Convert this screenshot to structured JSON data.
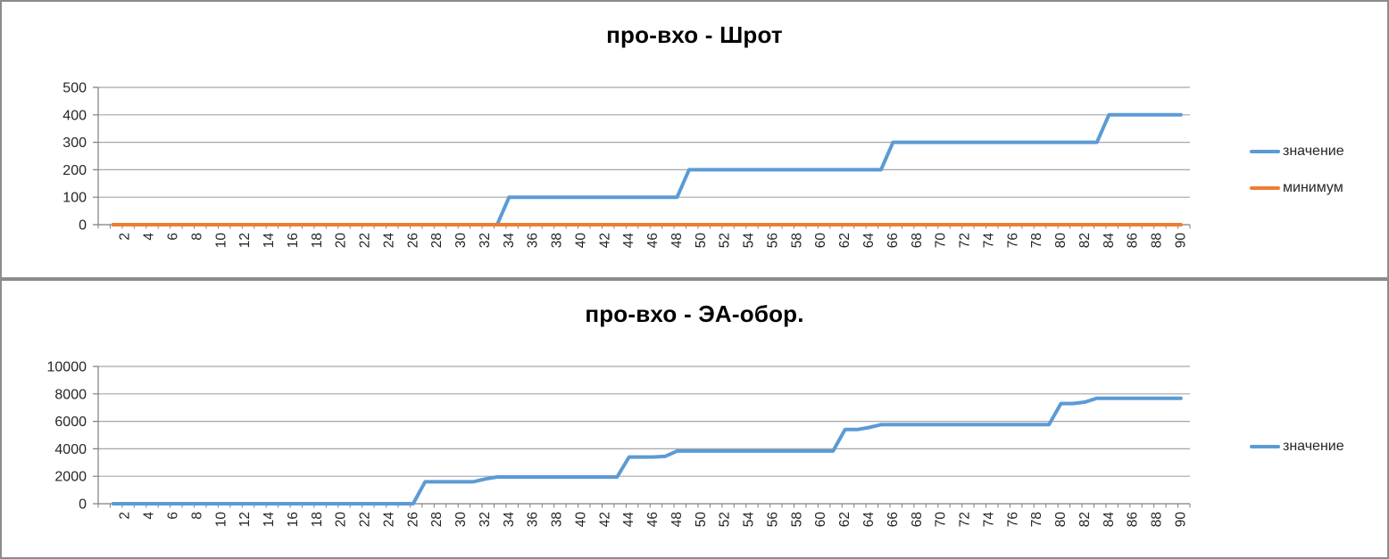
{
  "colors": {
    "series_blue": "#5B9BD5",
    "series_orange": "#ED7D31",
    "gridline": "#A6A6A6",
    "axis": "#7F7F7F",
    "tick": "#7F7F7F",
    "label_text": "#262626",
    "panel_border": "#8C8C8C"
  },
  "chart_data": [
    {
      "type": "line",
      "title": "про-вхо - Шрот",
      "xlabel": "",
      "ylabel": "",
      "ylim": [
        0,
        500
      ],
      "y_ticks": [
        0,
        100,
        200,
        300,
        400,
        500
      ],
      "x_tick_labels": [
        2,
        4,
        6,
        8,
        10,
        12,
        14,
        16,
        18,
        20,
        22,
        24,
        26,
        28,
        30,
        32,
        34,
        36,
        38,
        40,
        42,
        44,
        46,
        48,
        50,
        52,
        54,
        56,
        58,
        60,
        62,
        64,
        66,
        68,
        70,
        72,
        74,
        76,
        78,
        80,
        82,
        84,
        86,
        88,
        90
      ],
      "x_range": [
        1,
        90
      ],
      "grid": true,
      "legend_position": "right",
      "series": [
        {
          "name": "значение",
          "color": "#5B9BD5",
          "values": [
            0,
            0,
            0,
            0,
            0,
            0,
            0,
            0,
            0,
            0,
            0,
            0,
            0,
            0,
            0,
            0,
            0,
            0,
            0,
            0,
            0,
            0,
            0,
            0,
            0,
            0,
            0,
            0,
            0,
            0,
            0,
            0,
            0,
            100,
            100,
            100,
            100,
            100,
            100,
            100,
            100,
            100,
            100,
            100,
            100,
            100,
            100,
            100,
            200,
            200,
            200,
            200,
            200,
            200,
            200,
            200,
            200,
            200,
            200,
            200,
            200,
            200,
            200,
            200,
            200,
            300,
            300,
            300,
            300,
            300,
            300,
            300,
            300,
            300,
            300,
            300,
            300,
            300,
            300,
            300,
            300,
            300,
            300,
            400,
            400,
            400,
            400,
            400,
            400,
            400
          ]
        },
        {
          "name": "минимум",
          "color": "#ED7D31",
          "values": [
            0,
            0,
            0,
            0,
            0,
            0,
            0,
            0,
            0,
            0,
            0,
            0,
            0,
            0,
            0,
            0,
            0,
            0,
            0,
            0,
            0,
            0,
            0,
            0,
            0,
            0,
            0,
            0,
            0,
            0,
            0,
            0,
            0,
            0,
            0,
            0,
            0,
            0,
            0,
            0,
            0,
            0,
            0,
            0,
            0,
            0,
            0,
            0,
            0,
            0,
            0,
            0,
            0,
            0,
            0,
            0,
            0,
            0,
            0,
            0,
            0,
            0,
            0,
            0,
            0,
            0,
            0,
            0,
            0,
            0,
            0,
            0,
            0,
            0,
            0,
            0,
            0,
            0,
            0,
            0,
            0,
            0,
            0,
            0,
            0,
            0,
            0,
            0,
            0,
            0
          ]
        }
      ]
    },
    {
      "type": "line",
      "title": "про-вхо - ЭА-обор.",
      "xlabel": "",
      "ylabel": "",
      "ylim": [
        0,
        10000
      ],
      "y_ticks": [
        0,
        2000,
        4000,
        6000,
        8000,
        10000
      ],
      "x_tick_labels": [
        2,
        4,
        6,
        8,
        10,
        12,
        14,
        16,
        18,
        20,
        22,
        24,
        26,
        28,
        30,
        32,
        34,
        36,
        38,
        40,
        42,
        44,
        46,
        48,
        50,
        52,
        54,
        56,
        58,
        60,
        62,
        64,
        66,
        68,
        70,
        72,
        74,
        76,
        78,
        80,
        82,
        84,
        86,
        88,
        90
      ],
      "x_range": [
        1,
        90
      ],
      "grid": true,
      "legend_position": "right",
      "series": [
        {
          "name": "значение",
          "color": "#5B9BD5",
          "values": [
            0,
            0,
            0,
            0,
            0,
            0,
            0,
            0,
            0,
            0,
            0,
            0,
            0,
            0,
            0,
            0,
            0,
            0,
            0,
            0,
            0,
            0,
            0,
            0,
            0,
            0,
            1600,
            1600,
            1600,
            1600,
            1600,
            1800,
            1950,
            1950,
            1950,
            1950,
            1950,
            1950,
            1950,
            1950,
            1950,
            1950,
            1950,
            3400,
            3400,
            3400,
            3450,
            3840,
            3840,
            3840,
            3840,
            3840,
            3840,
            3840,
            3840,
            3840,
            3840,
            3840,
            3840,
            3840,
            3840,
            5400,
            5400,
            5550,
            5760,
            5760,
            5760,
            5760,
            5760,
            5760,
            5760,
            5760,
            5760,
            5760,
            5760,
            5760,
            5760,
            5760,
            5760,
            7300,
            7300,
            7400,
            7680,
            7680,
            7680,
            7680,
            7680,
            7680,
            7680,
            7680
          ]
        }
      ]
    }
  ]
}
